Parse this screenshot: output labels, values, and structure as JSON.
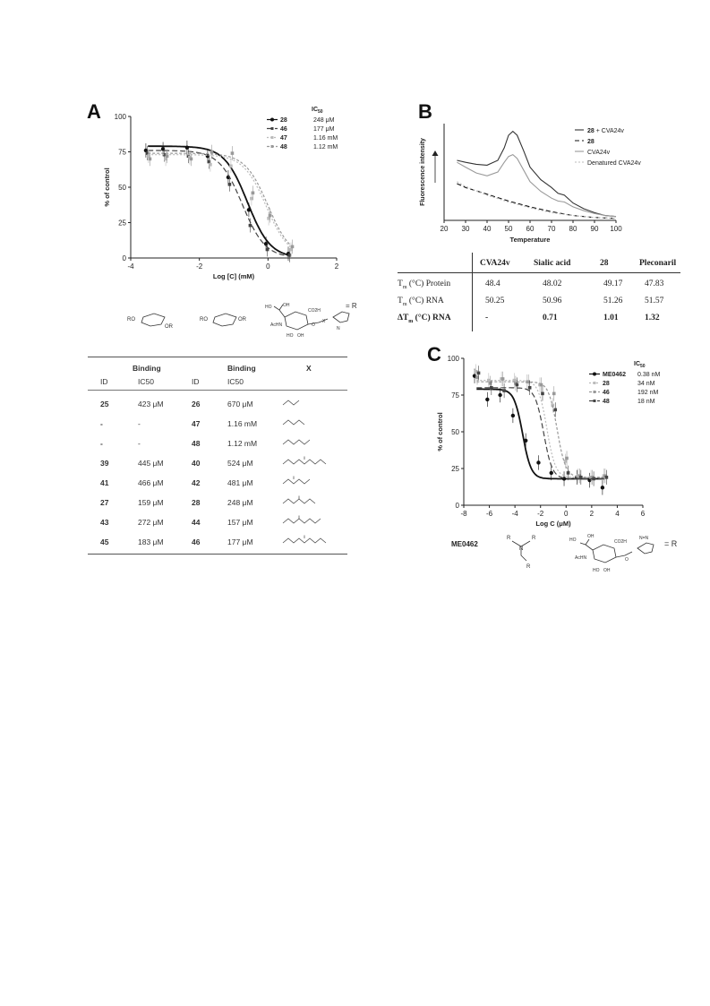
{
  "panelA": {
    "letter": "A",
    "chart_data": {
      "type": "line",
      "xlabel": "Log [C] (mM)",
      "ylabel": "% of control",
      "xlim": [
        -4,
        2
      ],
      "ylim": [
        0,
        100
      ],
      "xticks": [
        -4,
        -2,
        0,
        2
      ],
      "yticks": [
        0,
        25,
        50,
        75,
        100
      ],
      "legend_title": "IC50",
      "legend_position": "top-right",
      "x": [
        -3.5,
        -3.0,
        -2.3,
        -1.7,
        -1.1,
        -0.5,
        0.0,
        0.65
      ],
      "series": [
        {
          "name": "28",
          "ic50": "248 μM",
          "color": "#111111",
          "dash": "solid",
          "values": [
            76,
            77,
            78,
            72,
            57,
            34,
            10,
            3
          ],
          "top": 79,
          "logec50": -0.6
        },
        {
          "name": "46",
          "ic50": "177 μM",
          "color": "#444444",
          "dash": "6,3",
          "values": [
            74,
            73,
            72,
            68,
            52,
            23,
            6,
            2
          ],
          "top": 76,
          "logec50": -0.75
        },
        {
          "name": "47",
          "ic50": "1.16 mM",
          "color": "#bbbbbb",
          "dash": "2,2",
          "values": [
            72,
            70,
            71,
            66,
            65,
            42,
            28,
            6
          ],
          "top": 73,
          "logec50": -0.05
        },
        {
          "name": "48",
          "ic50": "1.12 mM",
          "color": "#999999",
          "dash": "3,2",
          "values": [
            70,
            72,
            70,
            75,
            74,
            46,
            30,
            8
          ],
          "top": 74,
          "logec50": 0.0
        }
      ]
    }
  },
  "tableA": {
    "header_binding1": "Binding",
    "header_binding2": "Binding",
    "header_x": "X",
    "col_id1": "ID",
    "col_ic1": "IC50",
    "col_id2": "ID",
    "col_ic2": "IC50",
    "rows": [
      {
        "id1": "25",
        "ic1": "423 μM",
        "id2": "26",
        "ic2": "670 μM"
      },
      {
        "id1": "-",
        "ic1": "-",
        "id2": "47",
        "ic2": "1.16 mM"
      },
      {
        "id1": "-",
        "ic1": "-",
        "id2": "48",
        "ic2": "1.12 mM"
      },
      {
        "id1": "39",
        "ic1": "445 μM",
        "id2": "40",
        "ic2": "524 μM"
      },
      {
        "id1": "41",
        "ic1": "466 μM",
        "id2": "42",
        "ic2": "481 μM"
      },
      {
        "id1": "27",
        "ic1": "159 μM",
        "id2": "28",
        "ic2": "248 μM"
      },
      {
        "id1": "43",
        "ic1": "272 μM",
        "id2": "44",
        "ic2": "157 μM"
      },
      {
        "id1": "45",
        "ic1": "183 μM",
        "id2": "46",
        "ic2": "177 μM"
      }
    ]
  },
  "structuresA": {
    "ro": "RO",
    "or": "OR",
    "r_label": "= R",
    "acnh": "AcHN",
    "ho": "HO",
    "oh": "OH",
    "co2h": "CO2H",
    "x": "X",
    "o": "O",
    "n": "N"
  },
  "panelB": {
    "letter": "B",
    "chart_data": {
      "type": "line",
      "xlabel": "Temperature",
      "ylabel": "Fluorescence intensity",
      "xlim": [
        20,
        100
      ],
      "xticks": [
        20,
        30,
        40,
        50,
        60,
        70,
        80,
        90,
        100
      ],
      "legend_position": "top-right",
      "series": [
        {
          "name": "28 + CVA24v",
          "color": "#333333",
          "dash": "solid",
          "x": [
            26,
            30,
            35,
            40,
            45,
            48,
            50,
            52,
            54,
            57,
            60,
            65,
            70,
            73,
            76,
            80,
            85,
            90,
            95,
            100
          ],
          "values": [
            0.62,
            0.6,
            0.58,
            0.57,
            0.62,
            0.75,
            0.88,
            0.92,
            0.88,
            0.72,
            0.55,
            0.42,
            0.34,
            0.28,
            0.26,
            0.18,
            0.12,
            0.08,
            0.05,
            0.04
          ]
        },
        {
          "name": "28",
          "color": "#111111",
          "dash": "5,3",
          "x": [
            26,
            30,
            40,
            50,
            60,
            70,
            80,
            90,
            100
          ],
          "values": [
            0.38,
            0.34,
            0.27,
            0.2,
            0.14,
            0.09,
            0.05,
            0.03,
            0.02
          ]
        },
        {
          "name": "CVA24v",
          "color": "#999999",
          "dash": "solid",
          "x": [
            26,
            30,
            35,
            40,
            45,
            48,
            50,
            52,
            54,
            57,
            60,
            65,
            70,
            73,
            76,
            80,
            85,
            90,
            95,
            100
          ],
          "values": [
            0.6,
            0.55,
            0.49,
            0.46,
            0.5,
            0.6,
            0.66,
            0.68,
            0.64,
            0.52,
            0.4,
            0.3,
            0.23,
            0.2,
            0.19,
            0.14,
            0.1,
            0.07,
            0.05,
            0.04
          ]
        },
        {
          "name": "Denatured CVA24v",
          "color": "#bbbbbb",
          "dash": "2,2",
          "x": [
            26,
            30,
            40,
            50,
            60,
            70,
            80,
            90,
            100
          ],
          "values": [
            0.4,
            0.35,
            0.26,
            0.19,
            0.13,
            0.08,
            0.05,
            0.03,
            0.02
          ]
        }
      ]
    }
  },
  "tableB": {
    "headers": [
      "CVA24v",
      "Sialic acid",
      "28",
      "Pleconaril"
    ],
    "rows": [
      {
        "label_pre": "T",
        "label_sub": "m",
        "label_post": " (°C) Protein",
        "values": [
          "48.4",
          "48.02",
          "49.17",
          "47.83"
        ],
        "bold": false
      },
      {
        "label_pre": "T",
        "label_sub": "m",
        "label_post": " (°C) RNA",
        "values": [
          "50.25",
          "50.96",
          "51.26",
          "51.57"
        ],
        "bold": false
      },
      {
        "label_pre": "ΔT",
        "label_sub": "m",
        "label_post": " (°C) RNA",
        "values": [
          "-",
          "0.71",
          "1.01",
          "1.32"
        ],
        "bold": true
      }
    ]
  },
  "panelC": {
    "letter": "C",
    "chart_data": {
      "type": "line",
      "xlabel": "Log C (μM)",
      "ylabel": "% of control",
      "xlim": [
        -8,
        6
      ],
      "ylim": [
        0,
        100
      ],
      "xticks": [
        -8,
        -6,
        -4,
        -2,
        0,
        2,
        4,
        6
      ],
      "yticks": [
        0,
        25,
        50,
        75,
        100
      ],
      "legend_title": "IC50",
      "legend_position": "top-right",
      "x": [
        -7,
        -6,
        -5,
        -4,
        -3,
        -2,
        -1,
        0,
        1,
        2,
        3
      ],
      "series": [
        {
          "name": "ME0462",
          "ic50": "0.38 nM",
          "color": "#111111",
          "dash": "solid",
          "values": [
            88,
            72,
            75,
            61,
            44,
            29,
            22,
            18,
            19,
            17,
            12
          ],
          "top": 79,
          "bottom": 18,
          "logec50": -3.4
        },
        {
          "name": "28",
          "ic50": "34 nM",
          "color": "#bbbbbb",
          "dash": "2,2",
          "values": [
            91,
            85,
            86,
            85,
            84,
            82,
            68,
            30,
            20,
            19,
            20
          ],
          "top": 85,
          "bottom": 19,
          "logec50": -1.5
        },
        {
          "name": "46",
          "ic50": "192 nM",
          "color": "#999999",
          "dash": "3,2",
          "values": [
            87,
            83,
            86,
            83,
            84,
            82,
            76,
            32,
            20,
            19,
            20
          ],
          "top": 84,
          "bottom": 19,
          "logec50": -0.7
        },
        {
          "name": "48",
          "ic50": "18 nM",
          "color": "#444444",
          "dash": "6,3",
          "values": [
            90,
            80,
            78,
            82,
            80,
            76,
            65,
            22,
            19,
            18,
            19
          ],
          "top": 80,
          "bottom": 18,
          "logec50": -1.75
        }
      ]
    }
  },
  "structuresC": {
    "me_label": "ME0462",
    "r1": "R",
    "r2": "R",
    "r3": "R",
    "n": "N",
    "r_label": "= R",
    "acnh": "AcHN",
    "ho": "HO",
    "oh": "OH",
    "co2h": "CO2H",
    "nnn": "N=N",
    "o": "O"
  }
}
